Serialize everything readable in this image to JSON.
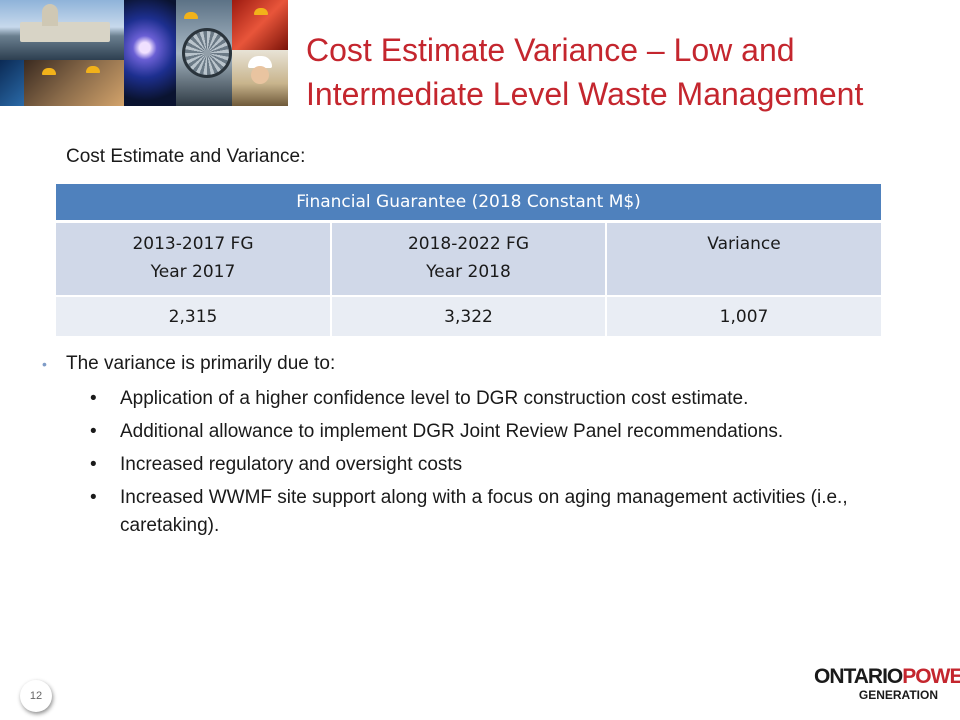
{
  "slide": {
    "title": "Cost Estimate Variance – Low and Intermediate Level Waste Management",
    "subtitle": "Cost Estimate and Variance:",
    "page_number": "12"
  },
  "table": {
    "caption": "Financial Guarantee (2018 Constant M$)",
    "columns": [
      {
        "line1": "2013-2017 FG",
        "line2": "Year 2017"
      },
      {
        "line1": "2018-2022 FG",
        "line2": "Year 2018"
      },
      {
        "line1": "Variance",
        "line2": ""
      }
    ],
    "values": [
      "2,315",
      "3,322",
      "1,007"
    ]
  },
  "bullets": {
    "intro": "The variance is primarily due to:",
    "items": [
      "Application of a higher confidence level to DGR construction cost estimate.",
      "Additional allowance to implement DGR Joint Review Panel recommendations.",
      "Increased regulatory and oversight costs",
      "Increased WWMF site support along with a focus on aging management activities (i.e., caretaking)."
    ]
  },
  "logo": {
    "word1": "ONTARIO",
    "word2": "POWER",
    "word3": "GENERATION"
  },
  "colors": {
    "title": "#c4262e",
    "table_header": "#4f81bd",
    "table_band": "#d0d8e8",
    "table_row": "#e9edf4"
  }
}
